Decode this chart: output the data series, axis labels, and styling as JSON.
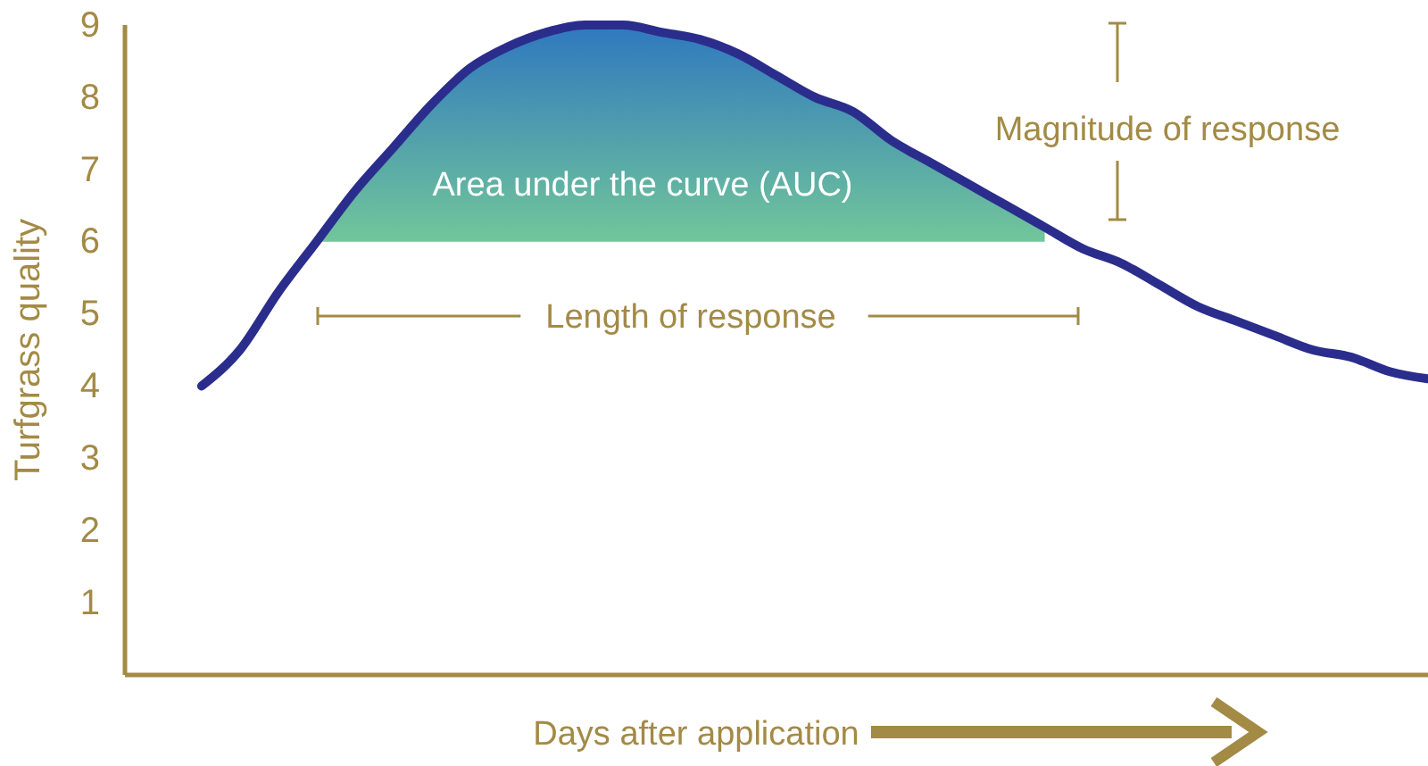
{
  "chart_data": {
    "type": "line",
    "xlabel": "Days after application",
    "ylabel": "Turfgrass quality",
    "categories": [
      null,
      null,
      null,
      null,
      null,
      null,
      null,
      null,
      null,
      null,
      null,
      null,
      null,
      null,
      null,
      null,
      null,
      null,
      null,
      null,
      null,
      null,
      null,
      null,
      null,
      null,
      null,
      null,
      null,
      null,
      null,
      null,
      null,
      null,
      null
    ],
    "series": [
      {
        "color": "#2b2d8c",
        "values": [
          null,
          null,
          4.0,
          4.5,
          5.3,
          6.0,
          6.7,
          7.3,
          7.9,
          8.4,
          8.7,
          8.9,
          9.0,
          9.0,
          8.9,
          8.8,
          8.6,
          8.3,
          8.0,
          7.8,
          7.4,
          7.1,
          6.8,
          6.5,
          6.2,
          5.9,
          5.7,
          5.4,
          5.1,
          4.9,
          4.7,
          4.5,
          4.4,
          4.2,
          4.1
        ],
        "lower": [
          null,
          null,
          null,
          null,
          null,
          6,
          6,
          6,
          6,
          6,
          6,
          6,
          6,
          6,
          6,
          6,
          6,
          6,
          6,
          6,
          6,
          6,
          6,
          6,
          6,
          null,
          null,
          null,
          null,
          null,
          null,
          null,
          null,
          null,
          null
        ],
        "upper": [
          null,
          null,
          null,
          null,
          null,
          6.0,
          6.7,
          7.3,
          7.9,
          8.4,
          8.7,
          8.9,
          9.0,
          9.0,
          8.9,
          8.8,
          8.6,
          8.3,
          8.0,
          7.8,
          7.4,
          7.1,
          6.8,
          6.5,
          6.2,
          null,
          null,
          null,
          null,
          null,
          null,
          null,
          null,
          null,
          null
        ]
      }
    ],
    "ylim": [
      0,
      9
    ],
    "yticks": [
      1,
      2,
      3,
      4,
      5,
      6,
      7,
      8,
      9
    ],
    "tick_labels": "y",
    "grid": false,
    "marker": "none",
    "line_style": "solid",
    "annotations": [
      "Area under the curve (AUC)",
      "Length of response",
      "Magnitude of response"
    ]
  }
}
